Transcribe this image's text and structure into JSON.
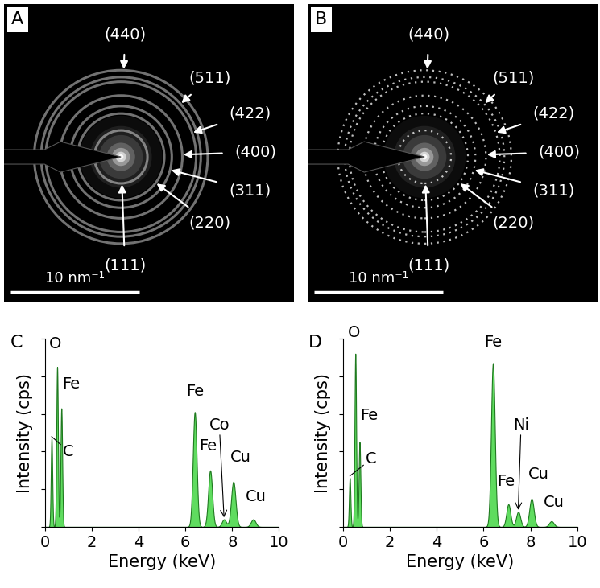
{
  "diffraction_patterns": [
    {
      "panel": "A",
      "line_style": "solid",
      "color": "#ffffff",
      "scale_bar": {
        "value": 10,
        "label": "10 nm⁻¹"
      },
      "rings": [
        {
          "label": "(111)",
          "radius": 2.06
        },
        {
          "label": "(220)",
          "radius": 3.37
        },
        {
          "label": "(311)",
          "radius": 3.95
        },
        {
          "label": "(400)",
          "radius": 4.77
        },
        {
          "label": "(422)",
          "radius": 5.84
        },
        {
          "label": "(511)",
          "radius": 6.2
        },
        {
          "label": "(440)",
          "radius": 6.74
        }
      ]
    },
    {
      "panel": "B",
      "line_style": "dotted",
      "color": "#ffffff",
      "scale_bar": {
        "value": 10,
        "label": "10 nm⁻¹"
      },
      "rings": [
        {
          "label": "(111)",
          "radius": 2.06
        },
        {
          "label": "(220)",
          "radius": 3.37
        },
        {
          "label": "(311)",
          "radius": 3.95
        },
        {
          "label": "(400)",
          "radius": 4.77
        },
        {
          "label": "(422)",
          "radius": 5.84
        },
        {
          "label": "(511)",
          "radius": 6.2
        },
        {
          "label": "(440)",
          "radius": 6.74
        }
      ]
    }
  ],
  "chart_data": [
    {
      "panel": "C",
      "type": "area",
      "x_label": "Energy (keV)",
      "y_label": "Intensity (cps)",
      "xlim": [
        0,
        10
      ],
      "xticks": [
        0,
        2,
        4,
        6,
        8,
        10
      ],
      "ylim": [
        0,
        100
      ],
      "yticks": [
        0,
        20,
        40,
        60,
        80,
        100
      ],
      "tick_labels": "x",
      "color": "#5fdc5f",
      "peaks": [
        {
          "x": 0.28,
          "value": 47,
          "label": "C"
        },
        {
          "x": 0.52,
          "value": 85,
          "label": "O"
        },
        {
          "x": 0.7,
          "value": 63,
          "label": "Fe"
        },
        {
          "x": 6.4,
          "value": 61,
          "label": "Fe"
        },
        {
          "x": 7.06,
          "value": 30,
          "label": "Fe"
        },
        {
          "x": 7.65,
          "value": 4,
          "label": "Co"
        },
        {
          "x": 8.05,
          "value": 24,
          "label": "Cu"
        },
        {
          "x": 8.9,
          "value": 4,
          "label": "Cu"
        }
      ]
    },
    {
      "panel": "D",
      "type": "area",
      "x_label": "Energy (keV)",
      "y_label": "Intensity (cps)",
      "xlim": [
        0,
        10
      ],
      "xticks": [
        0,
        2,
        4,
        6,
        8,
        10
      ],
      "ylim": [
        0,
        100
      ],
      "yticks": [
        0,
        20,
        40,
        60,
        80,
        100
      ],
      "tick_labels": "x",
      "color": "#5fdc5f",
      "peaks": [
        {
          "x": 0.28,
          "value": 26,
          "label": "C"
        },
        {
          "x": 0.52,
          "value": 92,
          "label": "O"
        },
        {
          "x": 0.7,
          "value": 45,
          "label": "Fe"
        },
        {
          "x": 6.4,
          "value": 87,
          "label": "Fe"
        },
        {
          "x": 7.06,
          "value": 12,
          "label": "Fe"
        },
        {
          "x": 7.48,
          "value": 8,
          "label": "Ni"
        },
        {
          "x": 8.05,
          "value": 15,
          "label": "Cu"
        },
        {
          "x": 8.9,
          "value": 3,
          "label": "Cu"
        }
      ]
    }
  ]
}
